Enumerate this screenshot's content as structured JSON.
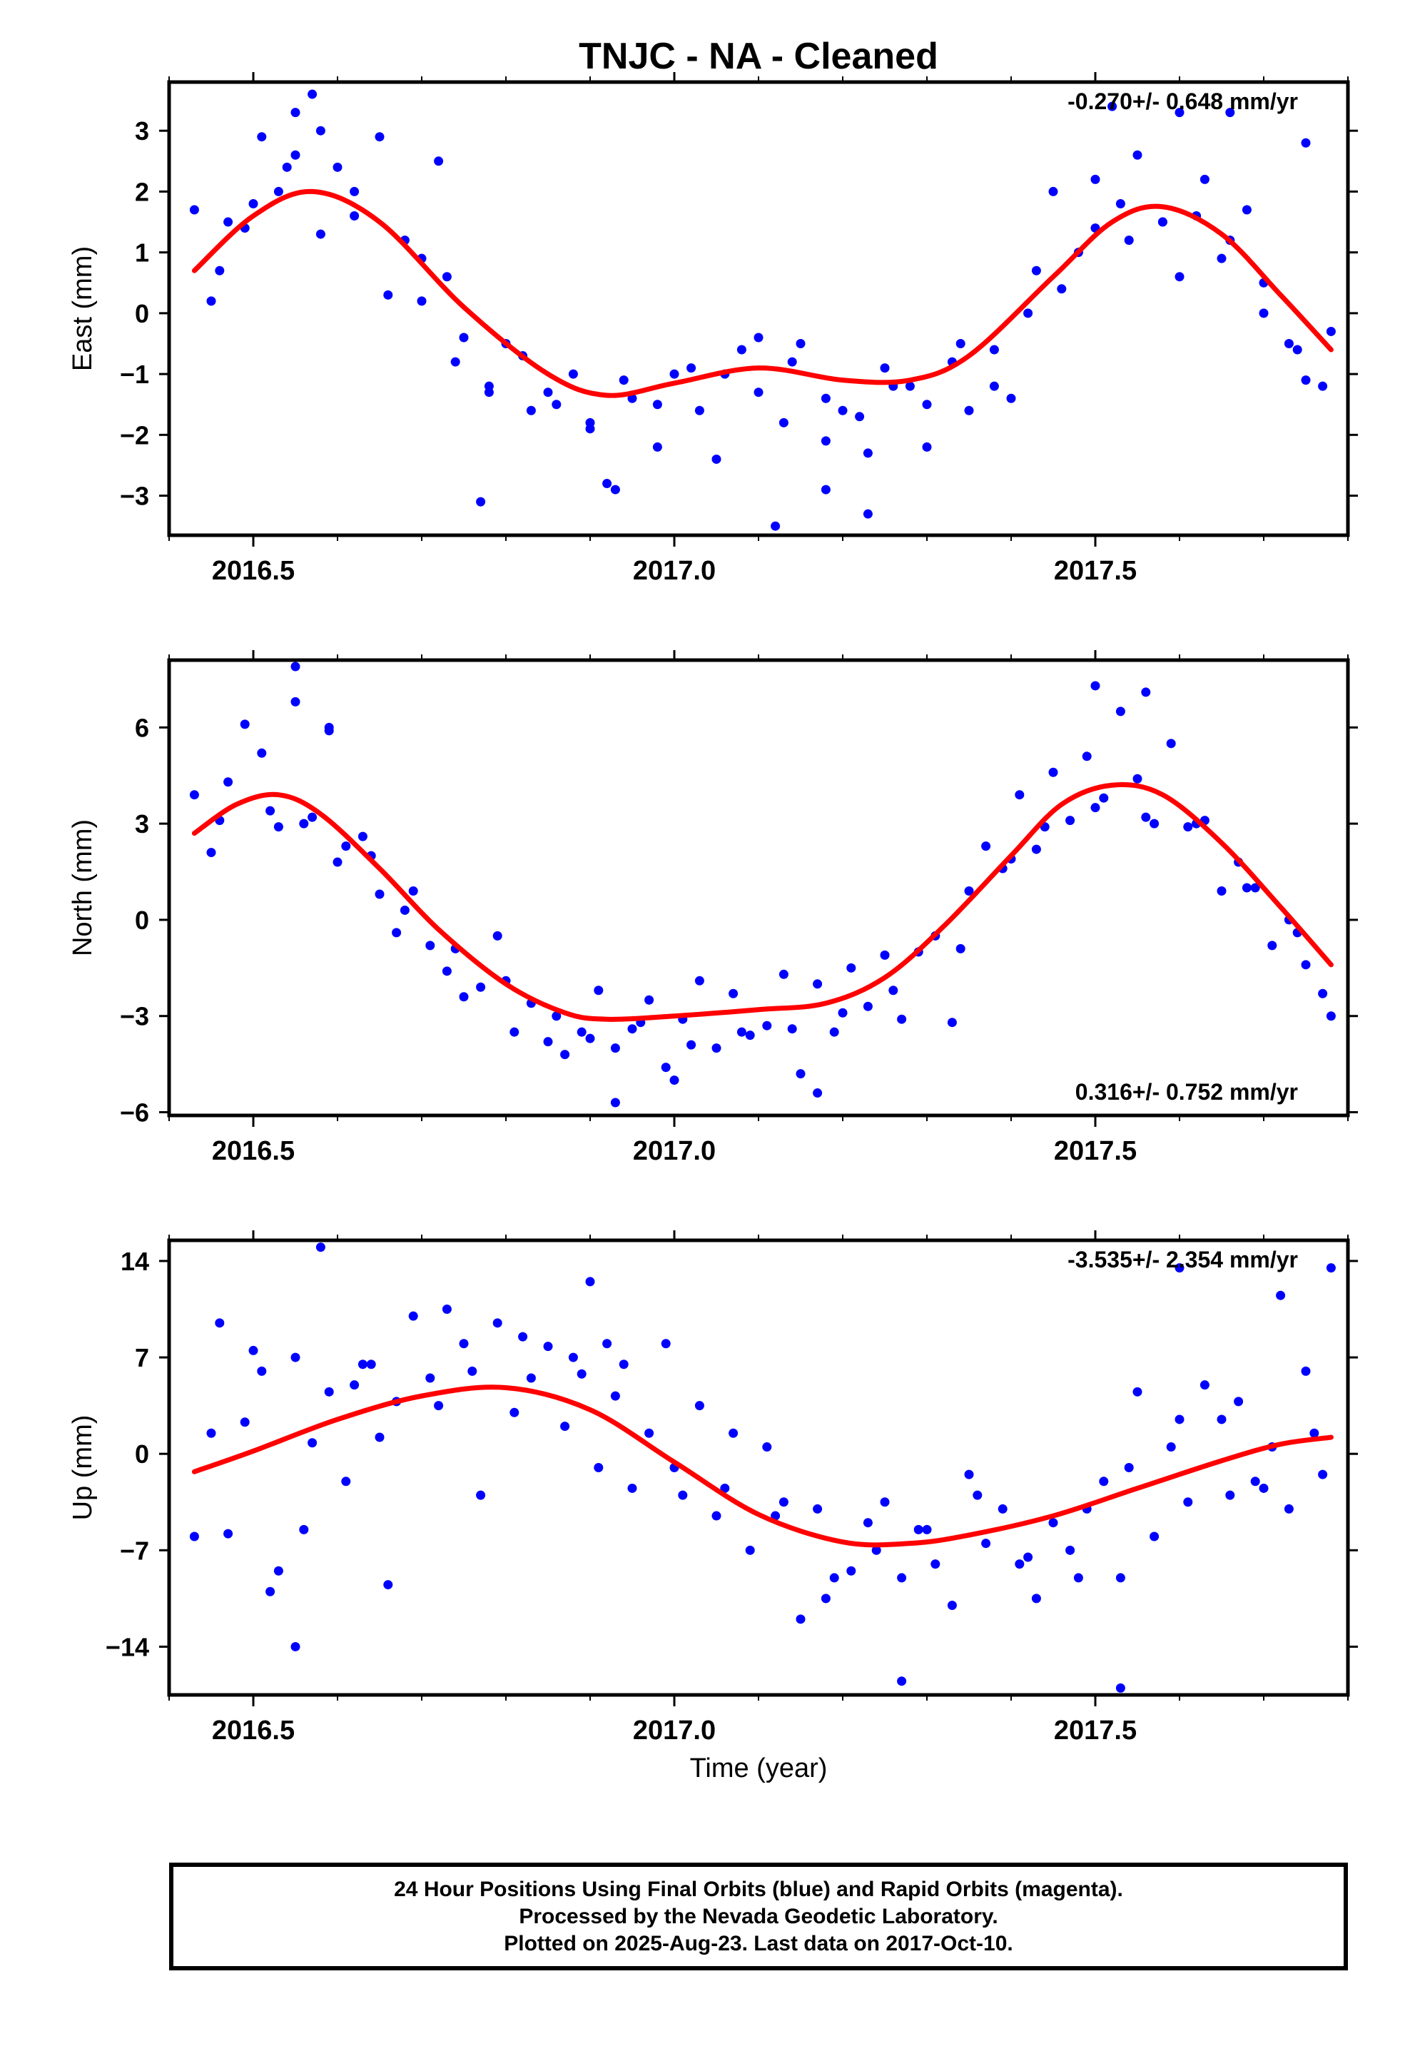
{
  "figure": {
    "title": "TNJC  - NA - Cleaned",
    "xlabel": "Time (year)",
    "point_color": "#0000ff",
    "fit_color": "#ff0000"
  },
  "footer": {
    "line1": "24 Hour Positions Using Final Orbits (blue) and Rapid Orbits (magenta).",
    "line2": "Processed by the Nevada Geodetic Laboratory.",
    "line3": "Plotted on 2025-Aug-23. Last data on 2017-Oct-10."
  },
  "chart_data": [
    {
      "type": "scatter",
      "panel": "east",
      "ylabel": "East (mm)",
      "xlim": [
        2016.4,
        2017.8
      ],
      "ylim": [
        -3.65,
        3.8
      ],
      "yticks": [
        -3,
        -2,
        -1,
        0,
        1,
        2,
        3
      ],
      "xticks": [
        2016.5,
        2017.0,
        2017.5
      ],
      "xtick_labels": [
        "2016.5",
        "2017.0",
        "2017.5"
      ],
      "rate_annotation": "-0.270+/- 0.648 mm/yr",
      "annotation_position": "top-right",
      "grid": false,
      "fit": {
        "x": [
          2016.43,
          2016.5,
          2016.57,
          2016.65,
          2016.75,
          2016.85,
          2016.92,
          2017.0,
          2017.1,
          2017.2,
          2017.28,
          2017.35,
          2017.45,
          2017.52,
          2017.58,
          2017.65,
          2017.72,
          2017.78
        ],
        "y": [
          0.7,
          1.6,
          2.0,
          1.5,
          0.1,
          -1.0,
          -1.35,
          -1.15,
          -0.9,
          -1.1,
          -1.1,
          -0.7,
          0.6,
          1.5,
          1.75,
          1.3,
          0.3,
          -0.6
        ]
      },
      "points": {
        "x": [
          2016.43,
          2016.45,
          2016.47,
          2016.49,
          2016.51,
          2016.53,
          2016.55,
          2016.57,
          2016.6,
          2016.62,
          2016.65,
          2016.68,
          2016.7,
          2016.73,
          2016.75,
          2016.78,
          2016.8,
          2016.83,
          2016.85,
          2016.88,
          2016.9,
          2016.93,
          2016.95,
          2016.98,
          2017.0,
          2017.03,
          2017.05,
          2017.08,
          2017.1,
          2017.13,
          2017.15,
          2017.18,
          2017.2,
          2017.23,
          2017.25,
          2017.28,
          2017.3,
          2017.33,
          2017.35,
          2017.38,
          2017.4,
          2017.43,
          2017.45,
          2017.48,
          2017.5,
          2017.53,
          2017.55,
          2017.58,
          2017.6,
          2017.63,
          2017.65,
          2017.68,
          2017.7,
          2017.73,
          2017.75,
          2017.78,
          2016.46,
          2016.5,
          2016.54,
          2016.58,
          2016.62,
          2016.66,
          2016.7,
          2016.74,
          2016.78,
          2016.82,
          2016.86,
          2016.9,
          2016.94,
          2016.98,
          2017.02,
          2017.06,
          2017.1,
          2017.14,
          2017.18,
          2017.22,
          2017.26,
          2017.3,
          2017.34,
          2017.38,
          2017.42,
          2017.46,
          2017.5,
          2017.54,
          2017.58,
          2017.62,
          2017.66,
          2017.7,
          2017.74,
          2017.77,
          2016.55,
          2016.58,
          2016.72,
          2016.77,
          2016.92,
          2017.18,
          2017.23,
          2017.12,
          2017.52,
          2017.6,
          2017.66,
          2017.75
        ],
        "y": [
          1.7,
          0.2,
          1.5,
          1.4,
          2.9,
          2.0,
          2.6,
          3.6,
          2.4,
          1.6,
          2.9,
          1.2,
          0.2,
          0.6,
          -0.4,
          -1.3,
          -0.5,
          -1.6,
          -1.3,
          -1.0,
          -1.8,
          -2.9,
          -1.4,
          -2.2,
          -1.0,
          -1.6,
          -2.4,
          -0.6,
          -1.3,
          -1.8,
          -0.5,
          -2.1,
          -1.6,
          -2.3,
          -0.9,
          -1.2,
          -2.2,
          -0.8,
          -1.6,
          -0.6,
          -1.4,
          0.7,
          2.0,
          1.0,
          2.2,
          1.8,
          2.6,
          1.5,
          0.6,
          2.2,
          0.9,
          1.7,
          0.0,
          -0.5,
          -1.1,
          -0.3,
          0.7,
          1.8,
          2.4,
          1.3,
          2.0,
          0.3,
          0.9,
          -0.8,
          -1.2,
          -0.7,
          -1.5,
          -1.9,
          -1.1,
          -1.5,
          -0.9,
          -1.0,
          -0.4,
          -0.8,
          -1.4,
          -1.7,
          -1.2,
          -1.5,
          -0.5,
          -1.2,
          0.0,
          0.4,
          1.4,
          1.2,
          1.5,
          1.6,
          1.2,
          0.5,
          -0.6,
          -1.2,
          3.3,
          3.0,
          2.5,
          -3.1,
          -2.8,
          -2.9,
          -3.3,
          -3.5,
          3.4,
          3.3,
          3.3,
          2.8
        ]
      }
    },
    {
      "type": "scatter",
      "panel": "north",
      "ylabel": "North (mm)",
      "xlim": [
        2016.4,
        2017.8
      ],
      "ylim": [
        -6.1,
        8.1
      ],
      "yticks": [
        -6,
        -3,
        0,
        3,
        6
      ],
      "xticks": [
        2016.5,
        2017.0,
        2017.5
      ],
      "xtick_labels": [
        "2016.5",
        "2017.0",
        "2017.5"
      ],
      "rate_annotation": "0.316+/- 0.752 mm/yr",
      "annotation_position": "bottom-right",
      "grid": false,
      "fit": {
        "x": [
          2016.43,
          2016.48,
          2016.53,
          2016.58,
          2016.65,
          2016.72,
          2016.8,
          2016.87,
          2016.92,
          2017.0,
          2017.1,
          2017.18,
          2017.25,
          2017.32,
          2017.4,
          2017.46,
          2017.52,
          2017.58,
          2017.65,
          2017.72,
          2017.78
        ],
        "y": [
          2.7,
          3.6,
          3.9,
          3.3,
          1.6,
          -0.3,
          -2.0,
          -2.9,
          -3.1,
          -3.0,
          -2.8,
          -2.6,
          -1.8,
          -0.2,
          2.0,
          3.6,
          4.2,
          3.9,
          2.4,
          0.4,
          -1.4
        ]
      },
      "points": {
        "x": [
          2016.43,
          2016.45,
          2016.47,
          2016.49,
          2016.51,
          2016.53,
          2016.55,
          2016.57,
          2016.59,
          2016.61,
          2016.63,
          2016.65,
          2016.67,
          2016.69,
          2016.71,
          2016.73,
          2016.75,
          2016.77,
          2016.79,
          2016.81,
          2016.83,
          2016.85,
          2016.87,
          2016.89,
          2016.91,
          2016.93,
          2016.95,
          2016.97,
          2016.99,
          2017.01,
          2017.03,
          2017.05,
          2017.07,
          2017.09,
          2017.11,
          2017.13,
          2017.15,
          2017.17,
          2017.19,
          2017.21,
          2017.23,
          2017.25,
          2017.27,
          2017.29,
          2017.31,
          2017.33,
          2017.35,
          2017.37,
          2017.39,
          2017.41,
          2017.43,
          2017.45,
          2017.47,
          2017.49,
          2017.51,
          2017.53,
          2017.55,
          2017.57,
          2017.59,
          2017.61,
          2017.63,
          2017.65,
          2017.67,
          2017.69,
          2017.71,
          2017.73,
          2017.75,
          2017.77,
          2016.46,
          2016.52,
          2016.56,
          2016.6,
          2016.64,
          2016.68,
          2016.74,
          2016.8,
          2016.86,
          2016.9,
          2016.96,
          2017.02,
          2017.08,
          2017.14,
          2017.2,
          2017.26,
          2017.34,
          2017.4,
          2017.44,
          2017.5,
          2017.56,
          2017.62,
          2017.68,
          2017.74,
          2016.55,
          2016.59,
          2016.93,
          2017.0,
          2017.17,
          2017.5,
          2017.56,
          2017.78
        ],
        "y": [
          3.9,
          2.1,
          4.3,
          6.1,
          5.2,
          2.9,
          7.9,
          3.2,
          6.0,
          2.3,
          2.6,
          0.8,
          -0.4,
          0.9,
          -0.8,
          -1.6,
          -2.4,
          -2.1,
          -0.5,
          -3.5,
          -2.6,
          -3.8,
          -4.2,
          -3.5,
          -2.2,
          -5.7,
          -3.4,
          -2.5,
          -4.6,
          -3.1,
          -1.9,
          -4.0,
          -2.3,
          -3.6,
          -3.3,
          -1.7,
          -4.8,
          -2.0,
          -3.5,
          -1.5,
          -2.7,
          -1.1,
          -3.1,
          -1.0,
          -0.5,
          -3.2,
          0.9,
          2.3,
          1.6,
          3.9,
          2.2,
          4.6,
          3.1,
          5.1,
          3.8,
          6.5,
          4.4,
          3.0,
          5.5,
          2.9,
          3.1,
          0.9,
          1.8,
          1.0,
          -0.8,
          0.0,
          -1.4,
          -2.3,
          3.1,
          3.4,
          3.0,
          1.8,
          2.0,
          0.3,
          -0.9,
          -1.9,
          -3.0,
          -3.7,
          -3.2,
          -3.9,
          -3.5,
          -3.4,
          -2.9,
          -2.2,
          -0.9,
          1.9,
          2.9,
          3.5,
          3.2,
          3.0,
          1.0,
          -0.4,
          6.8,
          5.9,
          -4.0,
          -5.0,
          -5.4,
          7.3,
          7.1,
          -3.0
        ]
      }
    },
    {
      "type": "scatter",
      "panel": "up",
      "ylabel": "Up (mm)",
      "xlim": [
        2016.4,
        2017.8
      ],
      "ylim": [
        -17.5,
        15.5
      ],
      "yticks": [
        -14,
        -7,
        0,
        7,
        14
      ],
      "xticks": [
        2016.5,
        2017.0,
        2017.5
      ],
      "xtick_labels": [
        "2016.5",
        "2017.0",
        "2017.5"
      ],
      "rate_annotation": "-3.535+/- 2.354 mm/yr",
      "annotation_position": "top-right",
      "grid": false,
      "fit": {
        "x": [
          2016.43,
          2016.5,
          2016.6,
          2016.7,
          2016.8,
          2016.9,
          2017.0,
          2017.1,
          2017.2,
          2017.28,
          2017.35,
          2017.45,
          2017.55,
          2017.65,
          2017.72,
          2017.78
        ],
        "y": [
          -1.3,
          0.2,
          2.5,
          4.2,
          4.8,
          3.2,
          -0.6,
          -4.4,
          -6.4,
          -6.5,
          -5.9,
          -4.5,
          -2.5,
          -0.5,
          0.7,
          1.2
        ]
      },
      "points": {
        "x": [
          2016.43,
          2016.45,
          2016.47,
          2016.49,
          2016.51,
          2016.53,
          2016.55,
          2016.57,
          2016.59,
          2016.61,
          2016.63,
          2016.65,
          2016.67,
          2016.69,
          2016.71,
          2016.73,
          2016.75,
          2016.77,
          2016.79,
          2016.81,
          2016.83,
          2016.85,
          2016.87,
          2016.89,
          2016.91,
          2016.93,
          2016.95,
          2016.97,
          2016.99,
          2017.01,
          2017.03,
          2017.05,
          2017.07,
          2017.09,
          2017.11,
          2017.13,
          2017.15,
          2017.17,
          2017.19,
          2017.21,
          2017.23,
          2017.25,
          2017.27,
          2017.29,
          2017.31,
          2017.33,
          2017.35,
          2017.37,
          2017.39,
          2017.41,
          2017.43,
          2017.45,
          2017.47,
          2017.49,
          2017.51,
          2017.53,
          2017.55,
          2017.57,
          2017.59,
          2017.61,
          2017.63,
          2017.65,
          2017.67,
          2017.69,
          2017.71,
          2017.73,
          2017.75,
          2017.77,
          2016.46,
          2016.5,
          2016.56,
          2016.62,
          2016.66,
          2016.72,
          2016.76,
          2016.82,
          2016.88,
          2016.94,
          2017.0,
          2017.06,
          2017.12,
          2017.18,
          2017.24,
          2017.3,
          2017.36,
          2017.42,
          2017.48,
          2017.54,
          2017.6,
          2017.66,
          2017.7,
          2017.76,
          2016.52,
          2016.55,
          2016.58,
          2016.64,
          2016.9,
          2016.92,
          2017.27,
          2017.53,
          2017.6,
          2017.72,
          2017.78
        ],
        "y": [
          -6.0,
          1.5,
          -5.8,
          2.3,
          6.0,
          -8.5,
          7.0,
          0.8,
          4.5,
          -2.0,
          6.5,
          1.2,
          3.8,
          10.0,
          5.5,
          10.5,
          8.0,
          -3.0,
          9.5,
          3.0,
          5.5,
          7.8,
          2.0,
          5.8,
          -1.0,
          4.2,
          -2.5,
          1.5,
          8.0,
          -3.0,
          3.5,
          -4.5,
          1.5,
          -7.0,
          0.5,
          -3.5,
          -12.0,
          -4.0,
          -9.0,
          -8.5,
          -5.0,
          -3.5,
          -9.0,
          -5.5,
          -8.0,
          -11.0,
          -1.5,
          -6.5,
          -4.0,
          -8.0,
          -10.5,
          -5.0,
          -7.0,
          -4.0,
          -2.0,
          -9.0,
          4.5,
          -6.0,
          0.5,
          -3.5,
          5.0,
          2.5,
          3.8,
          -2.0,
          0.5,
          -4.0,
          6.0,
          -1.5,
          9.5,
          7.5,
          -5.5,
          5.0,
          -9.5,
          3.5,
          6.0,
          8.5,
          7.0,
          6.5,
          -1.0,
          -2.5,
          -4.5,
          -10.5,
          -7.0,
          -5.5,
          -3.0,
          -7.5,
          -9.0,
          -1.0,
          2.5,
          -3.0,
          -2.5,
          1.5,
          -10.0,
          -14.0,
          15.0,
          6.5,
          12.5,
          8.0,
          -16.5,
          -17.0,
          13.5,
          11.5,
          13.5
        ]
      }
    }
  ]
}
